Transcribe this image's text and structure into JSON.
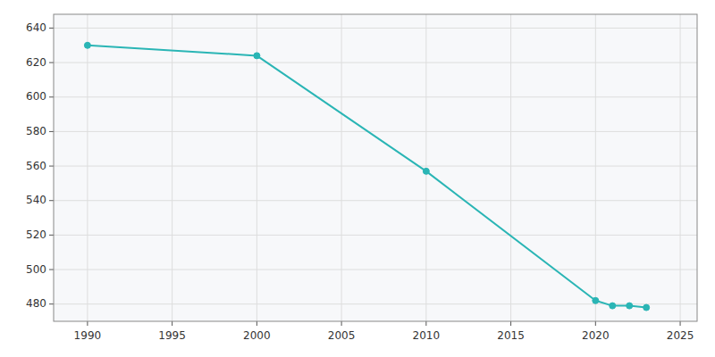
{
  "chart_data": {
    "type": "line",
    "x": [
      1990,
      2000,
      2010,
      2020,
      2021,
      2022,
      2023
    ],
    "values": [
      630,
      624,
      557,
      482,
      479,
      479,
      478
    ],
    "color": "#2AB5B5",
    "marker": "circle",
    "xlim": [
      1988,
      2026
    ],
    "ylim": [
      470,
      648
    ],
    "xticks": [
      1990,
      1995,
      2000,
      2005,
      2010,
      2015,
      2020,
      2025
    ],
    "yticks": [
      480,
      500,
      520,
      540,
      560,
      580,
      600,
      620,
      640
    ],
    "grid": true
  }
}
